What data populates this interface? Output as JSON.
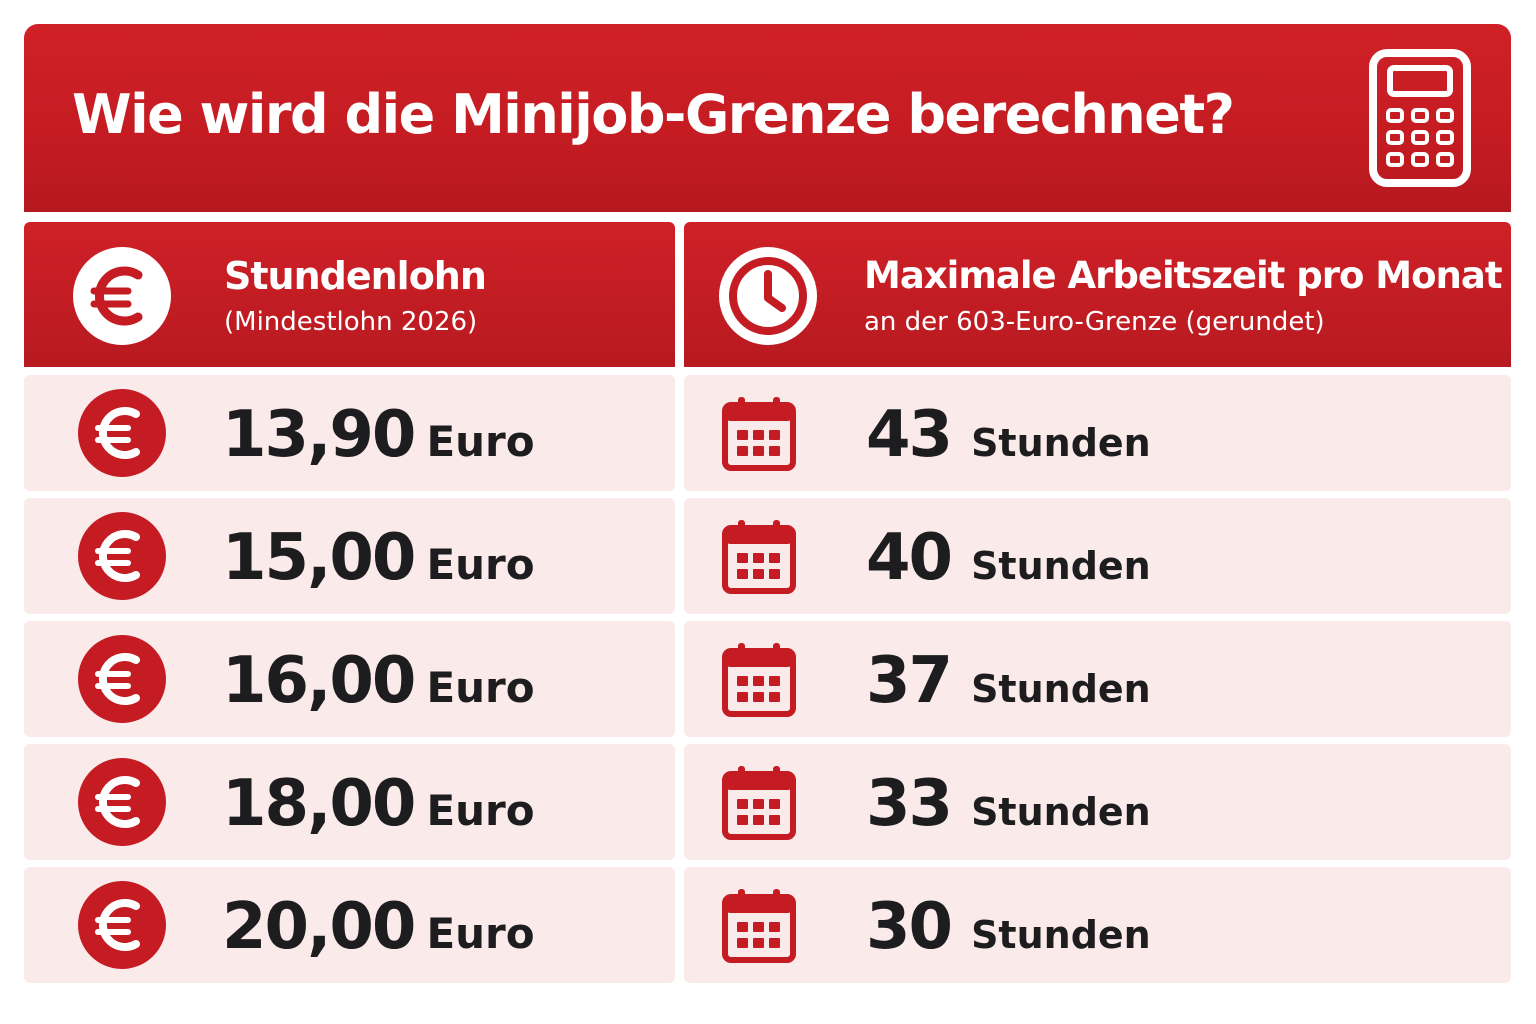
{
  "banner": {
    "title": "Wie wird die Minijob-Grenze berechnet?",
    "icon": "calculator-icon"
  },
  "columns": {
    "left": {
      "icon": "euro-icon",
      "title": "Stundenlohn",
      "subtitle": "(Mindestlohn 2026)"
    },
    "right": {
      "icon": "clock-icon",
      "title": "Maximale Arbeitszeit pro Monat",
      "subtitle": "an der 603-Euro-Grenze (gerundet)"
    }
  },
  "rows": [
    {
      "wage": "13,90",
      "wage_unit": "Euro",
      "hours": "43",
      "hours_unit": "Stunden"
    },
    {
      "wage": "15,00",
      "wage_unit": "Euro",
      "hours": "40",
      "hours_unit": "Stunden"
    },
    {
      "wage": "16,00",
      "wage_unit": "Euro",
      "hours": "37",
      "hours_unit": "Stunden"
    },
    {
      "wage": "18,00",
      "wage_unit": "Euro",
      "hours": "33",
      "hours_unit": "Stunden"
    },
    {
      "wage": "20,00",
      "wage_unit": "Euro",
      "hours": "30",
      "hours_unit": "Stunden"
    }
  ],
  "colors": {
    "brand_red": "#c41c22",
    "row_bg": "#fbeaea",
    "text_dark": "#1d1d1f"
  }
}
